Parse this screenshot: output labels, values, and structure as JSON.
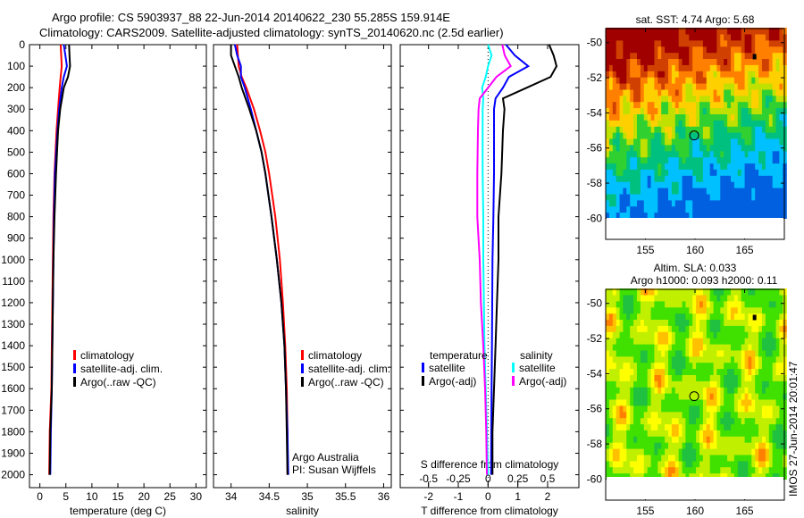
{
  "title_line1": "Argo profile: CS 5903937_88 22-Jun-2014 20140622_230 55.285S 159.914E",
  "title_line2": "Climatology: CARS2009. Satellite-adjusted climatology: synTS_20140620.nc (2.5d earlier)",
  "credit_line1": "Argo Australia",
  "credit_line2": "PI: Susan Wijffels",
  "timestamp": "IMOS 27-Jun-2014 20:01:47",
  "colors": {
    "red": "#ff0000",
    "blue": "#0000ff",
    "black": "#000000",
    "cyan": "#00ffff",
    "magenta": "#ff00ff"
  },
  "chart_data": [
    {
      "type": "line",
      "title": "",
      "xlabel": "temperature (deg C)",
      "ylabel": "",
      "xlim": [
        -2,
        32
      ],
      "ylim": [
        2060,
        0
      ],
      "xticks": [
        "0",
        "5",
        "10",
        "15",
        "20",
        "25",
        "30"
      ],
      "yticks": [
        "0",
        "100",
        "200",
        "300",
        "400",
        "500",
        "600",
        "700",
        "800",
        "900",
        "1000",
        "1100",
        "1200",
        "1300",
        "1400",
        "1500",
        "1600",
        "1700",
        "1800",
        "1900",
        "2000"
      ],
      "legend": [
        "climatology",
        "satellite-adj. clim.",
        "Argo(..raw -QC)"
      ],
      "depth": [
        0,
        50,
        100,
        150,
        200,
        300,
        400,
        600,
        800,
        1000,
        1200,
        1400,
        1600,
        1800,
        2000
      ],
      "series": [
        {
          "name": "climatology",
          "color": "#ff0000",
          "values": [
            4.0,
            4.1,
            4.2,
            4.0,
            3.8,
            3.5,
            3.2,
            2.8,
            2.6,
            2.5,
            2.4,
            2.3,
            2.2,
            1.9,
            1.8
          ]
        },
        {
          "name": "satellite-adj. clim.",
          "color": "#0000ff",
          "values": [
            4.6,
            4.9,
            5.2,
            4.6,
            4.2,
            3.7,
            3.4,
            2.9,
            2.7,
            2.6,
            2.5,
            2.4,
            2.3,
            2.1,
            2.0
          ]
        },
        {
          "name": "Argo(..raw -QC)",
          "color": "#000000",
          "values": [
            5.6,
            5.7,
            5.8,
            5.4,
            4.6,
            3.9,
            3.5,
            3.1,
            2.8,
            2.6,
            2.5,
            2.4,
            2.3,
            2.0,
            1.9
          ]
        }
      ]
    },
    {
      "type": "line",
      "xlabel": "salinity",
      "xlim": [
        33.77,
        36.1
      ],
      "ylim": [
        2060,
        0
      ],
      "xticks": [
        "34",
        "34.5",
        "35",
        "35.5",
        "36"
      ],
      "legend": [
        "climatology",
        "satellite-adj. clim.",
        "Argo(..raw -QC)"
      ],
      "depth": [
        0,
        50,
        100,
        150,
        200,
        300,
        400,
        500,
        600,
        800,
        1000,
        1200,
        1400,
        1600,
        1800,
        2000
      ],
      "series": [
        {
          "name": "climatology",
          "color": "#ff0000",
          "values": [
            34.08,
            34.09,
            34.1,
            34.14,
            34.2,
            34.3,
            34.38,
            34.45,
            34.5,
            34.58,
            34.64,
            34.68,
            34.71,
            34.73,
            34.74,
            34.74
          ]
        },
        {
          "name": "satellite-adj. clim.",
          "color": "#0000ff",
          "values": [
            34.05,
            34.08,
            34.13,
            34.13,
            34.18,
            34.26,
            34.33,
            34.4,
            34.45,
            34.53,
            34.6,
            34.66,
            34.7,
            34.72,
            34.74,
            34.75
          ]
        },
        {
          "name": "Argo(..raw -QC)",
          "color": "#000000",
          "values": [
            34.0,
            34.0,
            34.05,
            34.1,
            34.14,
            34.24,
            34.33,
            34.4,
            34.45,
            34.53,
            34.6,
            34.66,
            34.7,
            34.72,
            34.73,
            34.74
          ]
        }
      ]
    },
    {
      "type": "line",
      "xlabel": "T difference from climatology",
      "x2label": "S difference from climatology",
      "xlim": [
        -2.95,
        3.05
      ],
      "ylim": [
        2060,
        0
      ],
      "xticks": [
        "-2",
        "-1",
        "0",
        "1",
        "2"
      ],
      "x2ticks": [
        "-0.5",
        "-0.25",
        "0",
        "0.25",
        "0.5"
      ],
      "legend_temperature": {
        "title": "temperature",
        "items": [
          "satellite",
          "Argo(-adj)"
        ]
      },
      "legend_salinity": {
        "title": "salinity",
        "items": [
          "satellite",
          "Argo(-adj)"
        ]
      },
      "depth": [
        0,
        50,
        100,
        150,
        200,
        250,
        300,
        400,
        600,
        800,
        1000,
        1200,
        1400,
        1600,
        1800,
        2000
      ],
      "series": [
        {
          "name": "temperature satellite",
          "color": "#0000ff",
          "values": [
            0.6,
            0.9,
            1.35,
            0.7,
            0.5,
            0.25,
            0.2,
            0.2,
            0.2,
            0.18,
            0.15,
            0.14,
            0.13,
            0.12,
            0.11,
            0.1
          ]
        },
        {
          "name": "temperature Argo(-adj)",
          "color": "#000000",
          "values": [
            2.05,
            2.2,
            2.3,
            2.1,
            1.3,
            0.5,
            0.55,
            0.5,
            0.45,
            0.35,
            0.35,
            0.3,
            0.25,
            0.2,
            0.15,
            0.15
          ]
        },
        {
          "name": "salinity satellite",
          "color": "#00ffff",
          "values": [
            0.0,
            0.03,
            0.0,
            -0.02,
            -0.05,
            -0.04,
            -0.045,
            -0.045,
            -0.045,
            -0.04,
            -0.04,
            -0.035,
            -0.03,
            -0.02,
            -0.01,
            0.0
          ]
        },
        {
          "name": "salinity Argo(-adj)",
          "color": "#ff00ff",
          "values": [
            0.12,
            0.14,
            0.19,
            0.07,
            0.0,
            -0.07,
            -0.08,
            -0.085,
            -0.09,
            -0.09,
            -0.07,
            -0.06,
            -0.04,
            -0.025,
            -0.015,
            -0.01
          ]
        }
      ]
    },
    {
      "type": "heatmap",
      "title": "sat. SST: 4.74 Argo: 5.68",
      "xticks": [
        "155",
        "160",
        "165"
      ],
      "yticks": [
        "-50",
        "-52",
        "-54",
        "-56",
        "-58",
        "-60"
      ],
      "xlim": [
        151,
        169
      ],
      "ylim": [
        -61.2,
        -49.2
      ],
      "argo_position": {
        "lon": 159.914,
        "lat": -55.285
      }
    },
    {
      "type": "heatmap",
      "title_line1": "Altim. SLA: 0.033",
      "title_line2": "Argo h1000: 0.093 h2000: 0.11",
      "xticks": [
        "155",
        "160",
        "165"
      ],
      "yticks": [
        "-50",
        "-52",
        "-54",
        "-56",
        "-58",
        "-60"
      ],
      "xlim": [
        151,
        169
      ],
      "ylim": [
        -61.2,
        -49.2
      ],
      "argo_position": {
        "lon": 159.914,
        "lat": -55.285
      }
    }
  ]
}
